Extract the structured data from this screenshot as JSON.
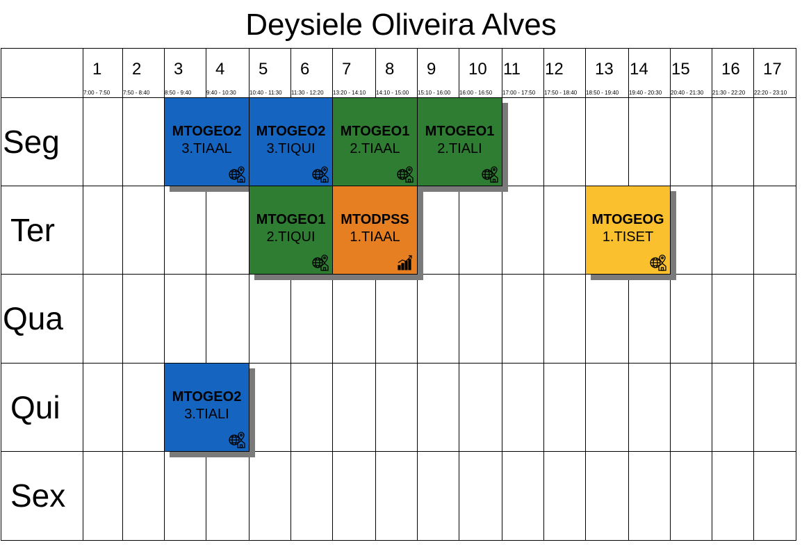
{
  "title": "Deysiele Oliveira Alves",
  "slots": [
    {
      "num": "1",
      "time": "7:00 - 7:50"
    },
    {
      "num": "2",
      "time": "7:50 - 8:40"
    },
    {
      "num": "3",
      "time": "8:50 - 9:40"
    },
    {
      "num": "4",
      "time": "9:40 - 10:30"
    },
    {
      "num": "5",
      "time": "10:40 - 11:30"
    },
    {
      "num": "6",
      "time": "11:30 - 12:20"
    },
    {
      "num": "7",
      "time": "13:20 - 14:10"
    },
    {
      "num": "8",
      "time": "14:10 - 15:00"
    },
    {
      "num": "9",
      "time": "15:10 - 16:00"
    },
    {
      "num": "10",
      "time": "16:00 - 16:50"
    },
    {
      "num": "11",
      "time": "17:00 - 17:50"
    },
    {
      "num": "12",
      "time": "17:50 - 18:40"
    },
    {
      "num": "13",
      "time": "18:50 - 19:40"
    },
    {
      "num": "14",
      "time": "19:40 - 20:30"
    },
    {
      "num": "15",
      "time": "20:40 - 21:30"
    },
    {
      "num": "16",
      "time": "21:30 - 22:20"
    },
    {
      "num": "17",
      "time": "22:20 - 23:10"
    }
  ],
  "days": [
    "Seg",
    "Ter",
    "Qua",
    "Qui",
    "Sex"
  ],
  "colors": {
    "blue": "#1565c0",
    "green": "#2e7d32",
    "orange": "#e67e22",
    "yellow": "#fbc02d"
  },
  "classes": [
    {
      "day": 0,
      "start": 3,
      "span": 2,
      "code": "MTOGEO2",
      "group": "3.TIAAL",
      "color": "#1565c0",
      "icon": "globe-house-icon"
    },
    {
      "day": 0,
      "start": 5,
      "span": 2,
      "code": "MTOGEO2",
      "group": "3.TIQUI",
      "color": "#1565c0",
      "icon": "globe-house-icon"
    },
    {
      "day": 0,
      "start": 7,
      "span": 2,
      "code": "MTOGEO1",
      "group": "2.TIAAL",
      "color": "#2e7d32",
      "icon": "globe-house-icon"
    },
    {
      "day": 0,
      "start": 9,
      "span": 2,
      "code": "MTOGEO1",
      "group": "2.TIALI",
      "color": "#2e7d32",
      "icon": "globe-house-icon"
    },
    {
      "day": 1,
      "start": 5,
      "span": 2,
      "code": "MTOGEO1",
      "group": "2.TIQUI",
      "color": "#2e7d32",
      "icon": "globe-house-icon"
    },
    {
      "day": 1,
      "start": 7,
      "span": 2,
      "code": "MTODPSS",
      "group": "1.TIAAL",
      "color": "#e67e22",
      "icon": "bar-chart-icon"
    },
    {
      "day": 1,
      "start": 13,
      "span": 2,
      "code": "MTOGEOG",
      "group": "1.TISET",
      "color": "#fbc02d",
      "icon": "globe-house-icon"
    },
    {
      "day": 3,
      "start": 3,
      "span": 2,
      "code": "MTOGEO2",
      "group": "3.TIALI",
      "color": "#1565c0",
      "icon": "globe-house-icon"
    }
  ]
}
